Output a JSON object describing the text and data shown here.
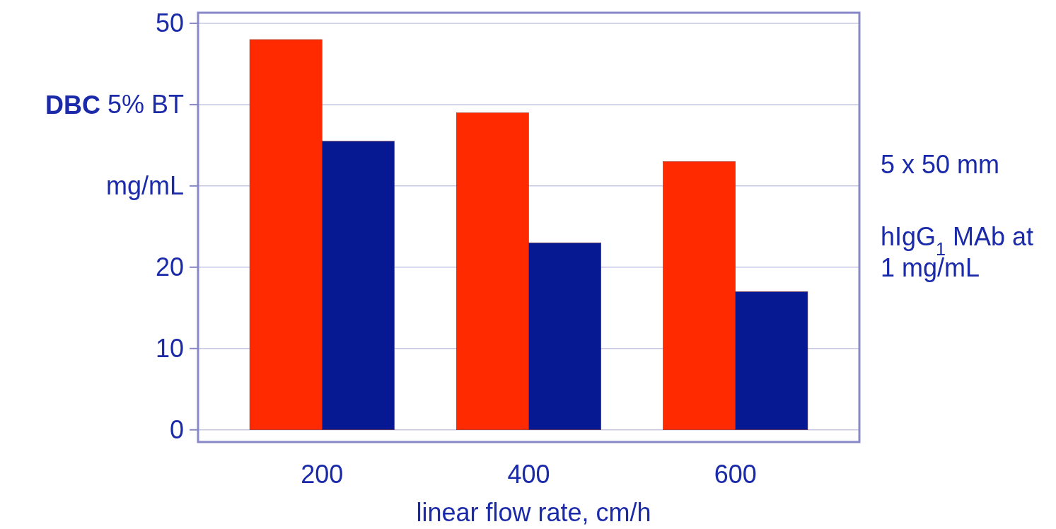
{
  "chart_data": {
    "type": "bar",
    "xlabel": "linear flow rate, cm/h",
    "ylabel": "DBC 5% BT mg/mL",
    "categories": [
      "200",
      "400",
      "600"
    ],
    "series": [
      {
        "color": "#ff2a00",
        "values": [
          48,
          39,
          33
        ]
      },
      {
        "color": "#061892",
        "values": [
          35.5,
          23,
          17
        ]
      }
    ],
    "ylim": [
      -1.5,
      51.3
    ],
    "yticks": [
      0,
      10,
      20,
      {
        "value": 30,
        "label": null
      },
      {
        "value": 40,
        "label": null
      },
      50
    ],
    "grid": "y",
    "annotations": [
      "5 x 50 mm",
      "hIgG$_{1}$ MAb at 1 mg/mL"
    ]
  }
}
